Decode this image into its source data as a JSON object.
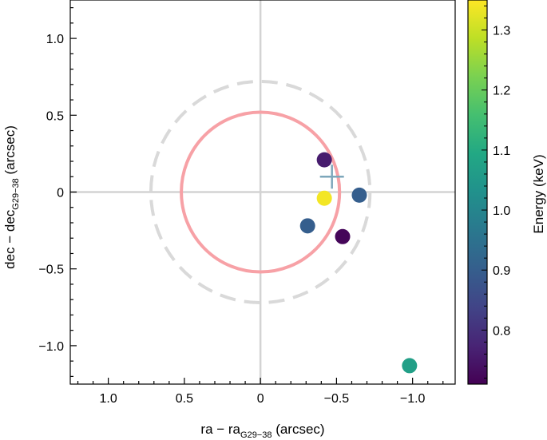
{
  "chart_data": {
    "type": "scatter",
    "xlabel": {
      "main": "ra − ra",
      "sub": "G29−38",
      "unit": " (arcsec)"
    },
    "ylabel": {
      "main": "dec − dec",
      "sub": "G29−38",
      "unit": " (arcsec)"
    },
    "colorbar_label": "Energy (keV)",
    "xlim": [
      1.25,
      -1.28
    ],
    "ylim": [
      -1.25,
      1.25
    ],
    "x_inverted": true,
    "x_ticks": [
      1.0,
      0.5,
      0.0,
      -0.5,
      -1.0
    ],
    "x_tick_labels": [
      "1.0",
      "0.5",
      "0",
      "−0.5",
      "−1.0"
    ],
    "y_ticks": [
      1.0,
      0.5,
      0.0,
      -0.5,
      -1.0
    ],
    "y_tick_labels": [
      "1.0",
      "0.5",
      "0",
      "−0.5",
      "−1.0"
    ],
    "colorbar": {
      "colormap": "viridis",
      "range": [
        0.71,
        1.35
      ],
      "ticks": [
        0.8,
        0.9,
        1.0,
        1.1,
        1.2,
        1.3
      ],
      "tick_labels": [
        "0.8",
        "0.9",
        "1.0",
        "1.1",
        "1.2",
        "1.3"
      ]
    },
    "crosshair": {
      "x": 0.0,
      "y": 0.0,
      "color": "#d3d3d3"
    },
    "circles": [
      {
        "name": "inner-circle",
        "cx": 0.0,
        "cy": 0.0,
        "r": 0.52,
        "color": "#f7a1a6",
        "style": "solid"
      },
      {
        "name": "outer-circle",
        "cx": 0.0,
        "cy": 0.0,
        "r": 0.72,
        "color": "#d9d9d9",
        "style": "dashed"
      }
    ],
    "marker": {
      "x": -0.47,
      "y": 0.1,
      "color": "#7da7bb",
      "shape": "plus"
    },
    "points": [
      {
        "x": -0.42,
        "y": 0.21,
        "energy": 0.76
      },
      {
        "x": -0.42,
        "y": -0.04,
        "energy": 1.34
      },
      {
        "x": -0.65,
        "y": -0.02,
        "energy": 0.9
      },
      {
        "x": -0.31,
        "y": -0.22,
        "energy": 0.9
      },
      {
        "x": -0.54,
        "y": -0.29,
        "energy": 0.72
      },
      {
        "x": -0.98,
        "y": -1.13,
        "energy": 1.07
      }
    ]
  }
}
